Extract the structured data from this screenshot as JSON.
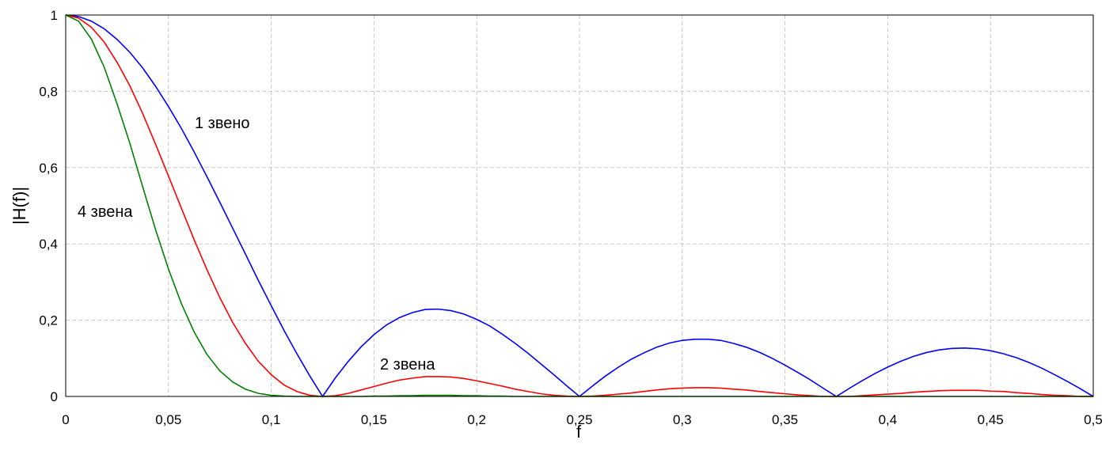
{
  "chart_data": {
    "type": "line",
    "x_label": "f",
    "y_label": "|H(f)|",
    "x": [
      0,
      0.00625,
      0.0125,
      0.01875,
      0.025,
      0.03125,
      0.0375,
      0.04375,
      0.05,
      0.05625,
      0.0625,
      0.06875,
      0.075,
      0.08125,
      0.0875,
      0.09375,
      0.1,
      0.10625,
      0.1125,
      0.11875,
      0.125,
      0.13125,
      0.1375,
      0.14375,
      0.15,
      0.15625,
      0.1625,
      0.16875,
      0.175,
      0.18125,
      0.1875,
      0.19375,
      0.2,
      0.20625,
      0.2125,
      0.21875,
      0.225,
      0.23125,
      0.2375,
      0.24375,
      0.25,
      0.25625,
      0.2625,
      0.26875,
      0.275,
      0.28125,
      0.2875,
      0.29375,
      0.3,
      0.30625,
      0.3125,
      0.31875,
      0.325,
      0.33125,
      0.3375,
      0.34375,
      0.35,
      0.35625,
      0.3625,
      0.36875,
      0.375,
      0.38125,
      0.3875,
      0.39375,
      0.4,
      0.40625,
      0.4125,
      0.41875,
      0.425,
      0.43125,
      0.4375,
      0.44375,
      0.45,
      0.45625,
      0.4625,
      0.46875,
      0.475,
      0.48125,
      0.4875,
      0.49375,
      0.5
    ],
    "series": [
      {
        "color": "#0000ff",
        "values": [
          1,
          0.996,
          0.984,
          0.964,
          0.936,
          0.902,
          0.861,
          0.813,
          0.76,
          0.703,
          0.641,
          0.576,
          0.509,
          0.441,
          0.373,
          0.304,
          0.238,
          0.173,
          0.112,
          0.054,
          0,
          0.049,
          0.092,
          0.13,
          0.162,
          0.188,
          0.207,
          0.22,
          0.228,
          0.229,
          0.225,
          0.216,
          0.202,
          0.185,
          0.163,
          0.139,
          0.113,
          0.085,
          0.057,
          0.028,
          0,
          0.027,
          0.053,
          0.076,
          0.097,
          0.114,
          0.129,
          0.14,
          0.147,
          0.15,
          0.15,
          0.147,
          0.139,
          0.129,
          0.116,
          0.1,
          0.082,
          0.063,
          0.043,
          0.021,
          0,
          0.021,
          0.041,
          0.06,
          0.077,
          0.092,
          0.105,
          0.115,
          0.122,
          0.126,
          0.127,
          0.125,
          0.12,
          0.112,
          0.102,
          0.089,
          0.074,
          0.057,
          0.039,
          0.02,
          0
        ]
      },
      {
        "color": "#ff0000",
        "values": [
          1,
          0.992,
          0.968,
          0.929,
          0.876,
          0.814,
          0.741,
          0.661,
          0.578,
          0.494,
          0.411,
          0.332,
          0.259,
          0.194,
          0.139,
          0.092,
          0.057,
          0.03,
          0.013,
          0.003,
          0,
          0.002,
          0.008,
          0.017,
          0.026,
          0.035,
          0.043,
          0.048,
          0.052,
          0.052,
          0.051,
          0.047,
          0.041,
          0.034,
          0.027,
          0.019,
          0.013,
          0.007,
          0.003,
          0.001,
          0,
          0.001,
          0.003,
          0.006,
          0.009,
          0.013,
          0.017,
          0.02,
          0.022,
          0.023,
          0.023,
          0.022,
          0.019,
          0.017,
          0.013,
          0.01,
          0.007,
          0.004,
          0.002,
          0,
          0,
          0,
          0.002,
          0.004,
          0.006,
          0.008,
          0.011,
          0.013,
          0.015,
          0.016,
          0.016,
          0.016,
          0.014,
          0.013,
          0.01,
          0.008,
          0.005,
          0.003,
          0.002,
          0,
          0
        ]
      },
      {
        "color": "#008000",
        "values": [
          1,
          0.984,
          0.937,
          0.863,
          0.767,
          0.663,
          0.549,
          0.437,
          0.334,
          0.244,
          0.169,
          0.11,
          0.067,
          0.038,
          0.019,
          0.008,
          0.003,
          0.001,
          0,
          0,
          0,
          0,
          0,
          0,
          0.001,
          0.001,
          0.002,
          0.002,
          0.003,
          0.003,
          0.003,
          0.002,
          0.002,
          0.001,
          0.001,
          0,
          0,
          0,
          0,
          0,
          0,
          0,
          0,
          0,
          0,
          0,
          0,
          0,
          0,
          0,
          0,
          0,
          0,
          0,
          0,
          0,
          0,
          0,
          0,
          0,
          0,
          0,
          0,
          0,
          0,
          0,
          0,
          0,
          0,
          0,
          0,
          0,
          0,
          0,
          0,
          0,
          0,
          0,
          0,
          0,
          0
        ]
      }
    ],
    "annotations": [
      "1 звено",
      "4 звена",
      "2 звена"
    ],
    "xlim": [
      0,
      0.5
    ],
    "ylim": [
      0,
      1
    ],
    "xticks": [
      0,
      {
        "value": 0.05,
        "label": "0,05"
      },
      {
        "value": 0.1,
        "label": "0,1"
      },
      {
        "value": 0.15,
        "label": "0,15"
      },
      {
        "value": 0.2,
        "label": "0,2"
      },
      {
        "value": 0.25,
        "label": "0,25"
      },
      {
        "value": 0.3,
        "label": "0,3"
      },
      {
        "value": 0.35,
        "label": "0,35"
      },
      {
        "value": 0.4,
        "label": "0,4"
      },
      {
        "value": 0.45,
        "label": "0,45"
      },
      {
        "value": 0.5,
        "label": "0,5"
      }
    ],
    "yticks": [
      0,
      {
        "value": 0.2,
        "label": "0,2"
      },
      {
        "value": 0.4,
        "label": "0,4"
      },
      {
        "value": 0.6,
        "label": "0,6"
      },
      {
        "value": 0.8,
        "label": "0,8"
      },
      1
    ],
    "grid": true
  }
}
